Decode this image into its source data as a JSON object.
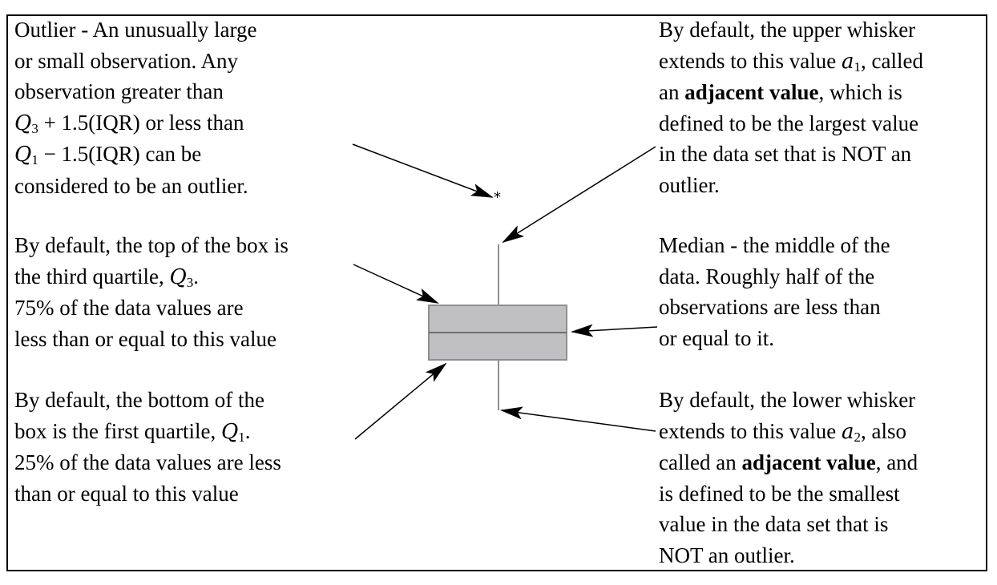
{
  "notes": {
    "outlier": {
      "line1": "Outlier - An unusually large",
      "line2": "or small observation.  Any",
      "line3": "observation greater than",
      "line4_math": "Q",
      "line4_sub": "3",
      "line4_rest": " + 1.5(IQR) or less than",
      "line5_math": "Q",
      "line5_sub": "1",
      "line5_rest": " − 1.5(IQR) can be",
      "line6": "considered to be an outlier."
    },
    "q3": {
      "line1": "By default, the top of the box is",
      "line2_pre": "the third quartile, ",
      "line2_math": "Q",
      "line2_sub": "3",
      "line2_post": ".",
      "line3": "75% of the data values are",
      "line4": "less than or equal to this value"
    },
    "q1": {
      "line1": "By default, the bottom of the",
      "line2_pre": "box is the first quartile, ",
      "line2_math": "Q",
      "line2_sub": "1",
      "line2_post": ".",
      "line3": "25% of the data values are less",
      "line4": "than or equal to this value"
    },
    "upper_whisker": {
      "line1": "By default, the upper whisker",
      "line2_pre": "extends to this value ",
      "line2_math": "a",
      "line2_sub": "1",
      "line2_post": ", called",
      "line3_pre": "an ",
      "line3_bold": "adjacent value",
      "line3_post": ", which is",
      "line4": "defined to be the largest value",
      "line5": "in the data set that is NOT an",
      "line6": "outlier."
    },
    "median": {
      "line1": "Median - the middle of the",
      "line2": "data.  Roughly half of the",
      "line3": "observations are less than",
      "line4": "or equal to it."
    },
    "lower_whisker": {
      "line1": "By default, the lower whisker",
      "line2_pre": "extends to this value ",
      "line2_math": "a",
      "line2_sub": "2",
      "line2_post": ", also",
      "line3_pre": "called an ",
      "line3_bold": "adjacent value",
      "line3_post": ", and",
      "line4": "is defined to be the smallest",
      "line5": "value in the data set that is",
      "line6": "NOT an outlier."
    }
  },
  "boxplot": {
    "outlier_marker": "*",
    "box_fill": "#c0bfc1",
    "box_stroke": "#8f8f8f",
    "whisker_color": "#8f8f8f",
    "arrow_color": "#000000"
  }
}
